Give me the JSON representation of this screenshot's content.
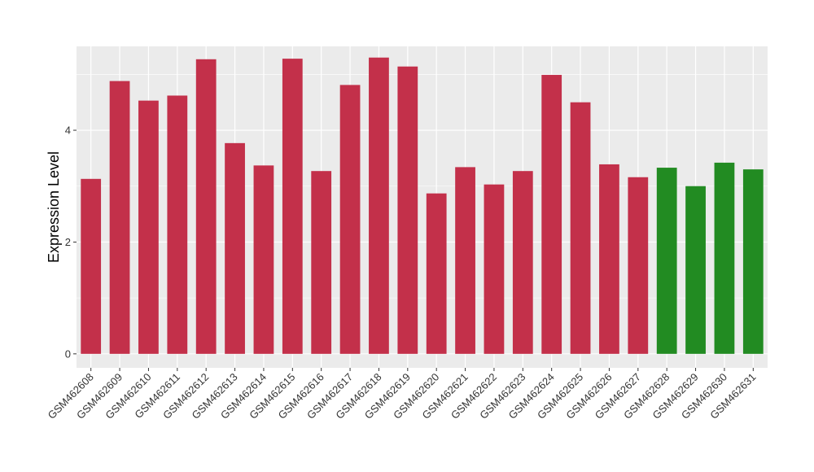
{
  "chart_data": {
    "type": "bar",
    "title": "",
    "xlabel": "",
    "ylabel": "Expression Level",
    "ylim": [
      -0.25,
      5.5
    ],
    "yticks": [
      0,
      2,
      4
    ],
    "grid": true,
    "legend": "none",
    "colors": {
      "red": "#c3304a",
      "green": "#228b22",
      "panel": "#ebebeb",
      "grid": "#ffffff"
    },
    "categories": [
      "GSM462608",
      "GSM462609",
      "GSM462610",
      "GSM462611",
      "GSM462612",
      "GSM462613",
      "GSM462614",
      "GSM462615",
      "GSM462616",
      "GSM462617",
      "GSM462618",
      "GSM462619",
      "GSM462620",
      "GSM462621",
      "GSM462622",
      "GSM462623",
      "GSM462624",
      "GSM462625",
      "GSM462626",
      "GSM462627",
      "GSM462628",
      "GSM462629",
      "GSM462630",
      "GSM462631"
    ],
    "values": [
      3.13,
      4.88,
      4.53,
      4.62,
      5.27,
      3.77,
      3.37,
      5.28,
      3.27,
      4.81,
      5.3,
      5.14,
      2.87,
      3.34,
      3.03,
      3.27,
      4.99,
      4.5,
      3.39,
      3.16,
      3.33,
      3.0,
      3.42,
      3.3
    ],
    "bar_colors": [
      "red",
      "red",
      "red",
      "red",
      "red",
      "red",
      "red",
      "red",
      "red",
      "red",
      "red",
      "red",
      "red",
      "red",
      "red",
      "red",
      "red",
      "red",
      "red",
      "red",
      "green",
      "green",
      "green",
      "green"
    ]
  }
}
